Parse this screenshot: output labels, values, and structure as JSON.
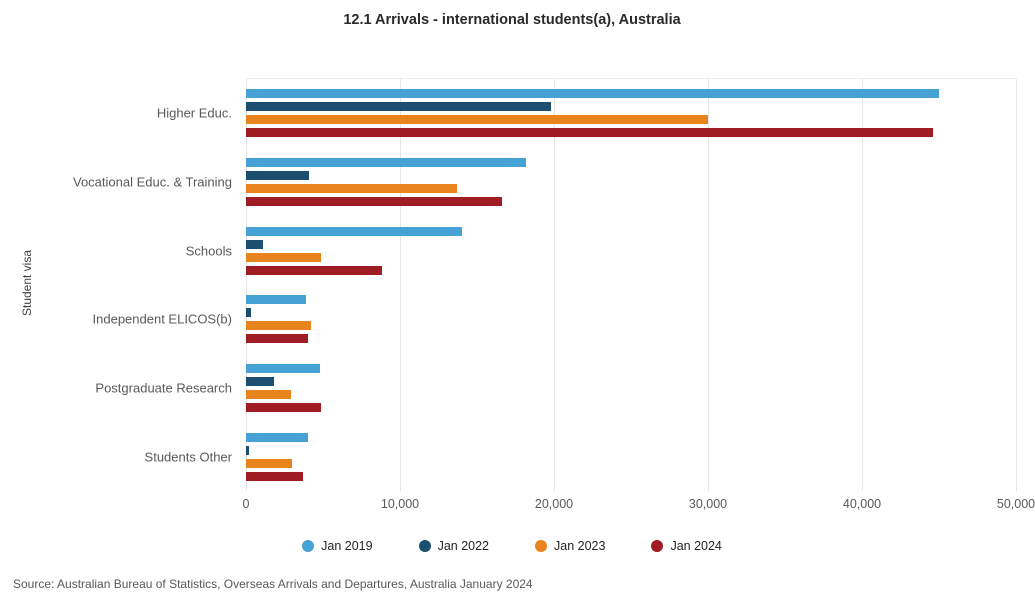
{
  "title": "12.1 Arrivals - international students(a), Australia",
  "source": "Source: Australian Bureau of Statistics, Overseas Arrivals and Departures, Australia January 2024",
  "colors": {
    "jan2019": "#46a2d4",
    "jan2022": "#1c4e70",
    "jan2023": "#e8831d",
    "jan2024": "#9f1c24",
    "gridline": "#e6e6e6",
    "axis_text": "#595959",
    "title_text": "#2a2a2a"
  },
  "chart_data": {
    "type": "bar",
    "orientation": "horizontal",
    "title": "12.1 Arrivals - international students(a), Australia",
    "ylabel": "Student visa",
    "xlabel": "",
    "xlim": [
      0,
      50000
    ],
    "x_ticks": [
      "0",
      "10,000",
      "20,000",
      "30,000",
      "40,000",
      "50,000"
    ],
    "x_tick_values": [
      0,
      10000,
      20000,
      30000,
      40000,
      50000
    ],
    "grid": "vertical",
    "legend_position": "bottom",
    "categories": [
      "Higher Educ.",
      "Vocational Educ. & Training",
      "Schools",
      "Independent ELICOS(b)",
      "Postgraduate Research",
      "Students Other"
    ],
    "series": [
      {
        "name": "Jan 2019",
        "color": "#46a2d4",
        "values": [
          45000,
          18200,
          14000,
          3900,
          4800,
          4000
        ]
      },
      {
        "name": "Jan 2022",
        "color": "#1c4e70",
        "values": [
          19800,
          4100,
          1100,
          300,
          1800,
          200
        ]
      },
      {
        "name": "Jan 2023",
        "color": "#e8831d",
        "values": [
          30000,
          13700,
          4900,
          4200,
          2900,
          3000
        ]
      },
      {
        "name": "Jan 2024",
        "color": "#9f1c24",
        "values": [
          44600,
          16600,
          8800,
          4000,
          4900,
          3700
        ]
      }
    ]
  }
}
